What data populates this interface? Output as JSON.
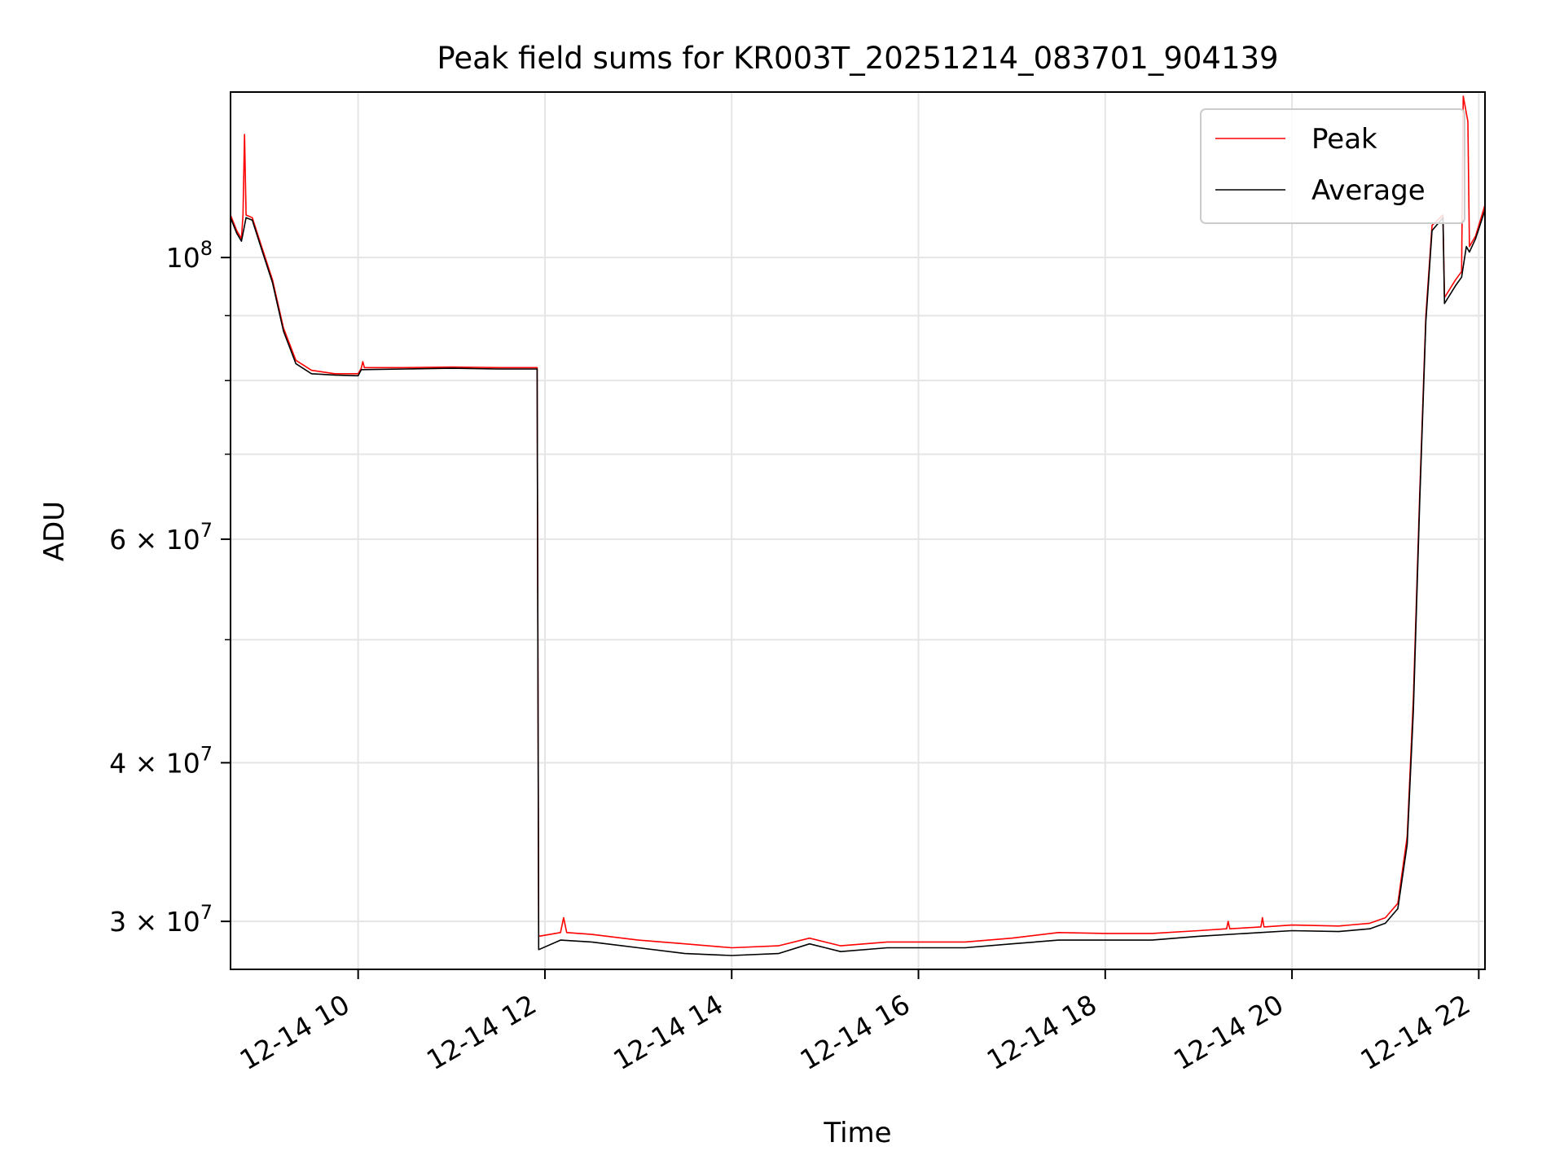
{
  "chart_data": {
    "type": "line",
    "title": "Peak field sums for KR003T_20251214_083701_904139",
    "xlabel": "Time",
    "ylabel": "ADU",
    "y_scale": "log",
    "ylim": [
      27500000,
      135000000
    ],
    "xlim": [
      "2025-12-14 08:38",
      "2025-12-14 22:04"
    ],
    "grid": true,
    "legend": "top-right",
    "x_ticks": [
      {
        "t": "2025-12-14 10:00",
        "label": "12-14 10"
      },
      {
        "t": "2025-12-14 12:00",
        "label": "12-14 12"
      },
      {
        "t": "2025-12-14 14:00",
        "label": "12-14 14"
      },
      {
        "t": "2025-12-14 16:00",
        "label": "12-14 16"
      },
      {
        "t": "2025-12-14 18:00",
        "label": "12-14 18"
      },
      {
        "t": "2025-12-14 20:00",
        "label": "12-14 20"
      },
      {
        "t": "2025-12-14 22:00",
        "label": "12-14 22"
      }
    ],
    "y_ticks": [
      {
        "value": 30000000,
        "base": "3",
        "exp": "7"
      },
      {
        "value": 40000000,
        "base": "4",
        "exp": "7"
      },
      {
        "value": 60000000,
        "base": "6",
        "exp": "7"
      },
      {
        "value": 100000000,
        "base": "",
        "exp": "8"
      }
    ],
    "y_minor_ticks": [
      50000000,
      70000000,
      80000000,
      90000000
    ],
    "series": [
      {
        "name": "Peak",
        "color": "#ff0000",
        "points": [
          [
            "2025-12-14 08:38",
            108000000
          ],
          [
            "2025-12-14 08:42",
            105000000
          ],
          [
            "2025-12-14 08:45",
            103500000
          ],
          [
            "2025-12-14 08:46",
            108000000
          ],
          [
            "2025-12-14 08:47",
            125000000
          ],
          [
            "2025-12-14 08:48",
            108000000
          ],
          [
            "2025-12-14 08:52",
            107500000
          ],
          [
            "2025-12-14 08:58",
            102000000
          ],
          [
            "2025-12-14 09:05",
            96000000
          ],
          [
            "2025-12-14 09:12",
            88000000
          ],
          [
            "2025-12-14 09:20",
            83000000
          ],
          [
            "2025-12-14 09:30",
            81500000
          ],
          [
            "2025-12-14 09:45",
            81000000
          ],
          [
            "2025-12-14 10:00",
            81000000
          ],
          [
            "2025-12-14 10:02",
            81800000
          ],
          [
            "2025-12-14 10:03",
            82800000
          ],
          [
            "2025-12-14 10:04",
            81900000
          ],
          [
            "2025-12-14 10:30",
            81900000
          ],
          [
            "2025-12-14 11:00",
            82000000
          ],
          [
            "2025-12-14 11:30",
            81900000
          ],
          [
            "2025-12-14 11:55",
            81900000
          ],
          [
            "2025-12-14 11:56",
            29200000
          ],
          [
            "2025-12-14 12:10",
            29400000
          ],
          [
            "2025-12-14 12:12",
            30200000
          ],
          [
            "2025-12-14 12:14",
            29400000
          ],
          [
            "2025-12-14 12:30",
            29300000
          ],
          [
            "2025-12-14 13:00",
            29000000
          ],
          [
            "2025-12-14 13:30",
            28800000
          ],
          [
            "2025-12-14 14:00",
            28600000
          ],
          [
            "2025-12-14 14:30",
            28700000
          ],
          [
            "2025-12-14 14:50",
            29100000
          ],
          [
            "2025-12-14 15:10",
            28700000
          ],
          [
            "2025-12-14 15:40",
            28900000
          ],
          [
            "2025-12-14 16:00",
            28900000
          ],
          [
            "2025-12-14 16:30",
            28900000
          ],
          [
            "2025-12-14 17:00",
            29100000
          ],
          [
            "2025-12-14 17:30",
            29400000
          ],
          [
            "2025-12-14 18:00",
            29350000
          ],
          [
            "2025-12-14 18:30",
            29350000
          ],
          [
            "2025-12-14 19:00",
            29500000
          ],
          [
            "2025-12-14 19:18",
            29600000
          ],
          [
            "2025-12-14 19:19",
            30000000
          ],
          [
            "2025-12-14 19:20",
            29600000
          ],
          [
            "2025-12-14 19:40",
            29700000
          ],
          [
            "2025-12-14 19:41",
            30200000
          ],
          [
            "2025-12-14 19:42",
            29700000
          ],
          [
            "2025-12-14 20:00",
            29800000
          ],
          [
            "2025-12-14 20:30",
            29750000
          ],
          [
            "2025-12-14 20:50",
            29900000
          ],
          [
            "2025-12-14 21:00",
            30200000
          ],
          [
            "2025-12-14 21:08",
            31000000
          ],
          [
            "2025-12-14 21:14",
            35000000
          ],
          [
            "2025-12-14 21:18",
            45000000
          ],
          [
            "2025-12-14 21:22",
            65000000
          ],
          [
            "2025-12-14 21:26",
            90000000
          ],
          [
            "2025-12-14 21:30",
            106000000
          ],
          [
            "2025-12-14 21:37",
            108000000
          ],
          [
            "2025-12-14 21:38",
            93000000
          ],
          [
            "2025-12-14 21:45",
            96000000
          ],
          [
            "2025-12-14 21:49",
            97500000
          ],
          [
            "2025-12-14 21:50",
            134000000
          ],
          [
            "2025-12-14 21:53",
            128000000
          ],
          [
            "2025-12-14 21:54",
            102000000
          ],
          [
            "2025-12-14 21:58",
            104000000
          ],
          [
            "2025-12-14 22:04",
            110000000
          ]
        ]
      },
      {
        "name": "Average",
        "color": "#000000",
        "points": [
          [
            "2025-12-14 08:38",
            107500000
          ],
          [
            "2025-12-14 08:42",
            104500000
          ],
          [
            "2025-12-14 08:45",
            103000000
          ],
          [
            "2025-12-14 08:48",
            107500000
          ],
          [
            "2025-12-14 08:52",
            107000000
          ],
          [
            "2025-12-14 08:58",
            101500000
          ],
          [
            "2025-12-14 09:05",
            95500000
          ],
          [
            "2025-12-14 09:12",
            87500000
          ],
          [
            "2025-12-14 09:20",
            82500000
          ],
          [
            "2025-12-14 09:30",
            81000000
          ],
          [
            "2025-12-14 09:45",
            80800000
          ],
          [
            "2025-12-14 10:00",
            80700000
          ],
          [
            "2025-12-14 10:02",
            81600000
          ],
          [
            "2025-12-14 10:30",
            81700000
          ],
          [
            "2025-12-14 11:00",
            81800000
          ],
          [
            "2025-12-14 11:30",
            81700000
          ],
          [
            "2025-12-14 11:55",
            81700000
          ],
          [
            "2025-12-14 11:56",
            28500000
          ],
          [
            "2025-12-14 12:10",
            29000000
          ],
          [
            "2025-12-14 12:30",
            28900000
          ],
          [
            "2025-12-14 13:00",
            28600000
          ],
          [
            "2025-12-14 13:30",
            28300000
          ],
          [
            "2025-12-14 14:00",
            28200000
          ],
          [
            "2025-12-14 14:30",
            28300000
          ],
          [
            "2025-12-14 14:50",
            28800000
          ],
          [
            "2025-12-14 15:10",
            28400000
          ],
          [
            "2025-12-14 15:40",
            28600000
          ],
          [
            "2025-12-14 16:00",
            28600000
          ],
          [
            "2025-12-14 16:30",
            28600000
          ],
          [
            "2025-12-14 17:00",
            28800000
          ],
          [
            "2025-12-14 17:30",
            29000000
          ],
          [
            "2025-12-14 18:00",
            29000000
          ],
          [
            "2025-12-14 18:30",
            29000000
          ],
          [
            "2025-12-14 19:00",
            29200000
          ],
          [
            "2025-12-14 19:30",
            29350000
          ],
          [
            "2025-12-14 20:00",
            29500000
          ],
          [
            "2025-12-14 20:30",
            29450000
          ],
          [
            "2025-12-14 20:50",
            29600000
          ],
          [
            "2025-12-14 21:00",
            29900000
          ],
          [
            "2025-12-14 21:08",
            30700000
          ],
          [
            "2025-12-14 21:14",
            34500000
          ],
          [
            "2025-12-14 21:18",
            44000000
          ],
          [
            "2025-12-14 21:22",
            64000000
          ],
          [
            "2025-12-14 21:26",
            89000000
          ],
          [
            "2025-12-14 21:30",
            105000000
          ],
          [
            "2025-12-14 21:37",
            107500000
          ],
          [
            "2025-12-14 21:38",
            92000000
          ],
          [
            "2025-12-14 21:45",
            95000000
          ],
          [
            "2025-12-14 21:49",
            96500000
          ],
          [
            "2025-12-14 21:52",
            102000000
          ],
          [
            "2025-12-14 21:54",
            101000000
          ],
          [
            "2025-12-14 21:58",
            103500000
          ],
          [
            "2025-12-14 22:04",
            109000000
          ]
        ]
      }
    ]
  }
}
